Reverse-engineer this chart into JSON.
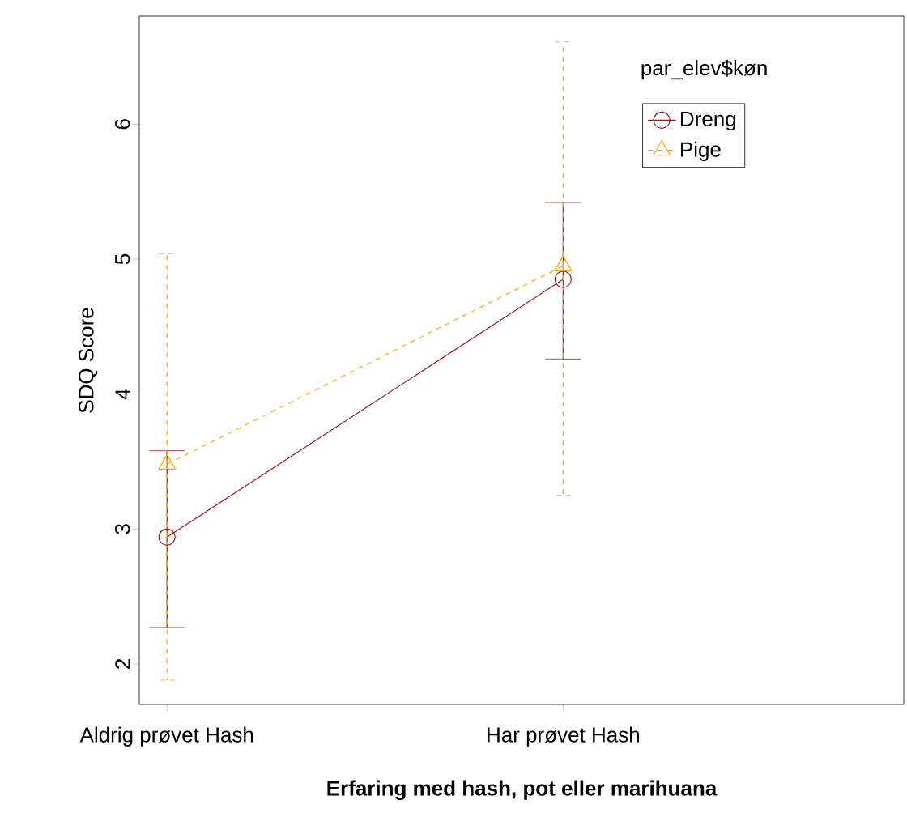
{
  "chart_data": {
    "type": "line",
    "xlabel": "Erfaring med hash, pot eller marihuana",
    "ylabel": "SDQ Score",
    "categories": [
      "Aldrig prøvet Hash",
      "Har prøvet Hash"
    ],
    "ylim": [
      1.7,
      6.8
    ],
    "yticks": [
      2,
      3,
      4,
      5,
      6
    ],
    "legend": "top right",
    "legend_title": "par_elev$køn",
    "grid": false,
    "series": [
      {
        "name": "Dreng",
        "color": "#9b1c1c",
        "values": [
          2.94,
          4.85
        ],
        "errors": [
          [
            2.27,
            3.58
          ],
          [
            4.26,
            5.42
          ]
        ],
        "marker": "circle",
        "line_style": "solid"
      },
      {
        "name": "Pige",
        "color": "#ffa500",
        "values": [
          3.48,
          4.95
        ],
        "errors": [
          [
            1.88,
            5.04
          ],
          [
            3.25,
            6.61
          ]
        ],
        "marker": "triangle",
        "line_style": "dashed"
      }
    ]
  }
}
